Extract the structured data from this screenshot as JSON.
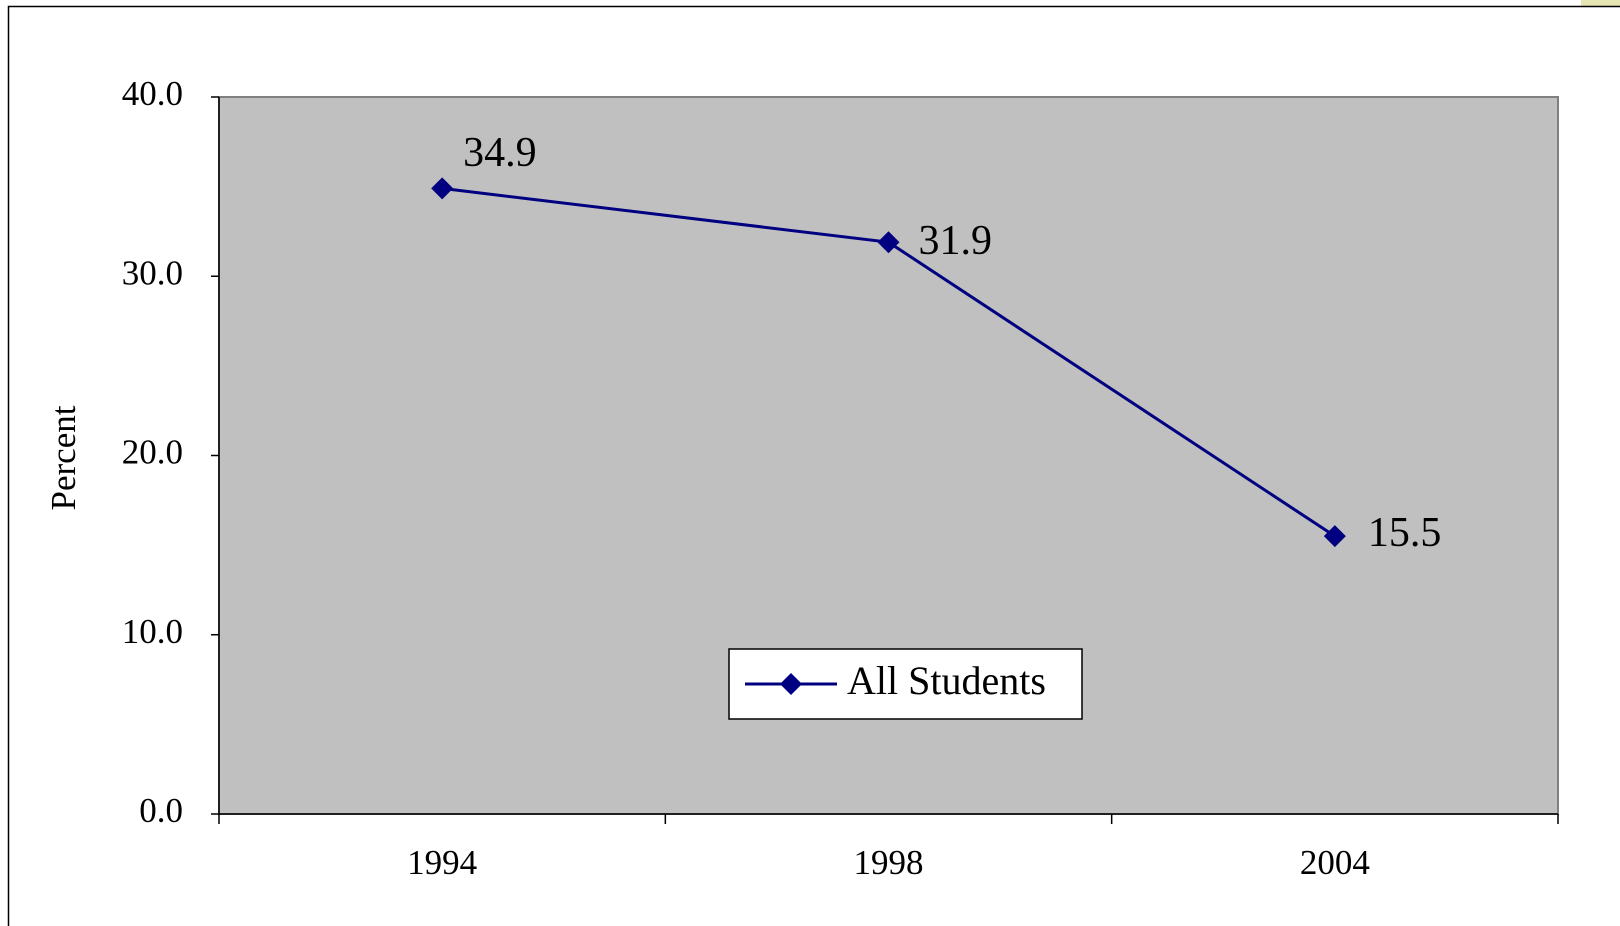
{
  "chart_data": {
    "type": "line",
    "y_label": "Percent",
    "categories": [
      "1994",
      "1998",
      "2004"
    ],
    "series": [
      {
        "name": "All Students",
        "color": "#000080",
        "values": [
          34.9,
          31.9,
          15.5
        ]
      }
    ],
    "ylim": [
      0,
      40
    ],
    "yticks": [
      {
        "value": 0,
        "label": "0.0"
      },
      {
        "value": 10,
        "label": "10.0"
      },
      {
        "value": 20,
        "label": "20.0"
      },
      {
        "value": 30,
        "label": "30.0"
      },
      {
        "value": 40,
        "label": "40.0"
      }
    ],
    "plot_background": "#c0c0c0",
    "legend": "bottom"
  }
}
